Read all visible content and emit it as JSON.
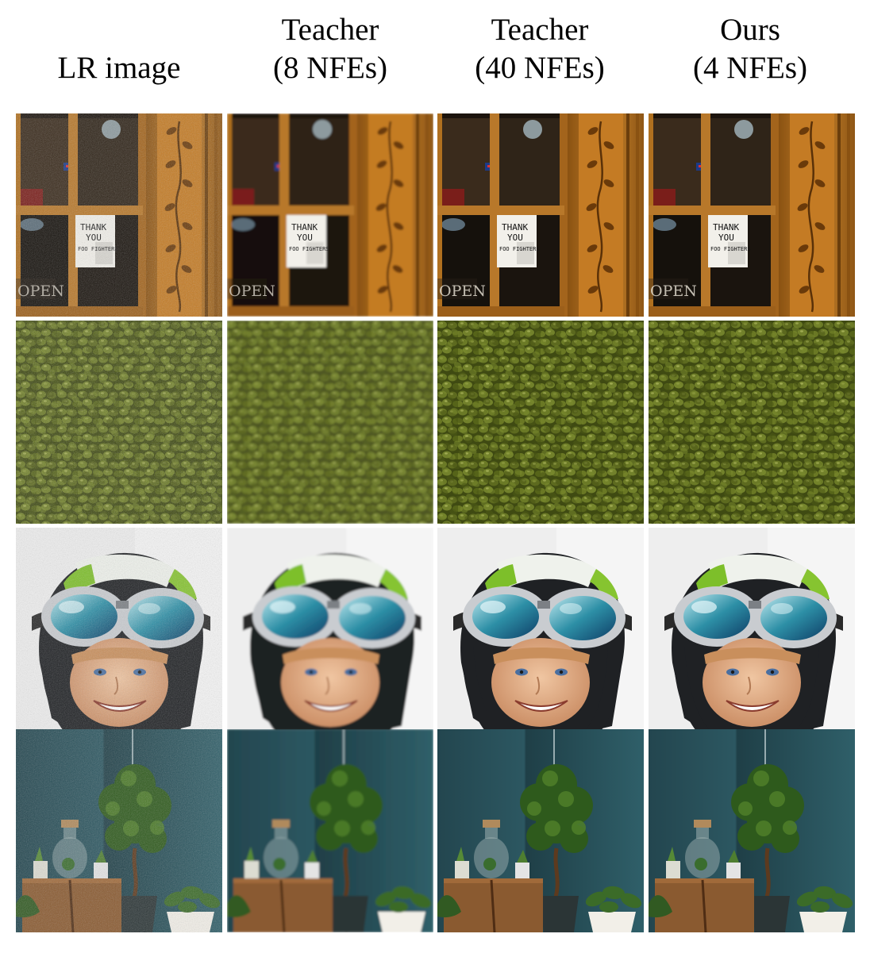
{
  "columns": [
    {
      "lines": [
        "LR image"
      ]
    },
    {
      "lines": [
        "Teacher",
        "(8 NFEs)"
      ]
    },
    {
      "lines": [
        "Teacher",
        "(40 NFEs)"
      ]
    },
    {
      "lines": [
        "Ours",
        "(4 NFEs)"
      ]
    }
  ],
  "sign": {
    "line1": "THANK",
    "line2": "YOU",
    "line3": "FOO FIGHTERS",
    "door": "OPEN"
  },
  "rows": [
    "storefront-door",
    "mung-beans",
    "child-in-helmet",
    "houseplants"
  ]
}
